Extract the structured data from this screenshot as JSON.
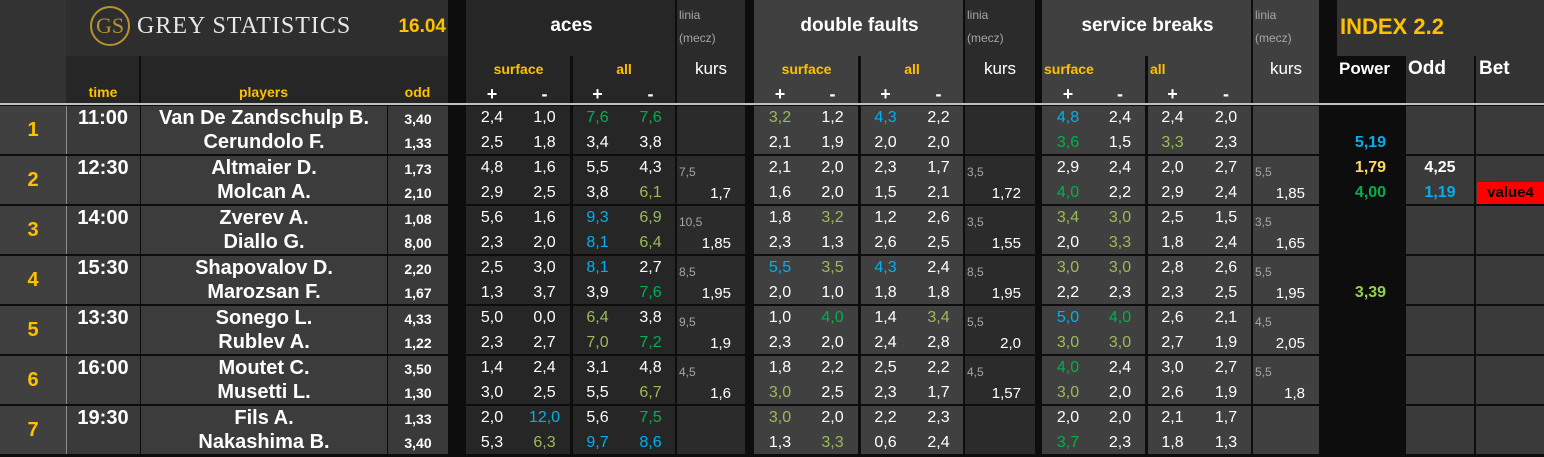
{
  "header": {
    "logo_mark": "GS",
    "brand": "GREY STATISTICS",
    "date": "16.04",
    "col_time": "time",
    "col_players": "players",
    "col_odd": "odd",
    "sections": [
      {
        "title": "aces",
        "linia": "linia",
        "mecz": "(mecz)",
        "surface": "surface",
        "all": "all",
        "plus": "+",
        "minus": "-",
        "kurs": "kurs"
      },
      {
        "title": "double faults",
        "linia": "linia",
        "mecz": "(mecz)",
        "surface": "surface",
        "all": "all",
        "plus": "+",
        "minus": "-",
        "kurs": "kurs"
      },
      {
        "title": "service breaks",
        "linia": "linia",
        "mecz": "(mecz)",
        "surface": "surface",
        "all": "all",
        "plus": "+",
        "minus": "-",
        "kurs": "kurs"
      }
    ],
    "index_title": "INDEX 2.2",
    "col_power": "Power",
    "col_index_odd": "Odd",
    "col_bet": "Bet"
  },
  "colors": {
    "w": "#ffffff",
    "g": "#00b050",
    "l": "#9bbb59",
    "b": "#00b0f0",
    "y": "#ffd966",
    "yg": "#92d050",
    "accent": "#ffc000",
    "bet_bg": "#ff0000"
  },
  "matches": [
    {
      "num": "1",
      "time": "11:00",
      "players": [
        "Van De Zandschulp B.",
        "Cerundolo F."
      ],
      "odds": [
        "3,40",
        "1,33"
      ],
      "aces": {
        "rows": [
          [
            [
              "2,4",
              "w"
            ],
            [
              "1,0",
              "w"
            ],
            [
              "7,6",
              "g"
            ],
            [
              "7,6",
              "g"
            ]
          ],
          [
            [
              "2,5",
              "w"
            ],
            [
              "1,8",
              "w"
            ],
            [
              "3,4",
              "w"
            ],
            [
              "3,8",
              "w"
            ]
          ]
        ],
        "linia": "",
        "kurs": ""
      },
      "df": {
        "rows": [
          [
            [
              "3,2",
              "l"
            ],
            [
              "1,2",
              "w"
            ],
            [
              "4,3",
              "b"
            ],
            [
              "2,2",
              "w"
            ]
          ],
          [
            [
              "2,1",
              "w"
            ],
            [
              "1,9",
              "w"
            ],
            [
              "2,0",
              "w"
            ],
            [
              "2,0",
              "w"
            ]
          ]
        ],
        "linia": "",
        "kurs": ""
      },
      "sb": {
        "rows": [
          [
            [
              "4,8",
              "b"
            ],
            [
              "2,4",
              "w"
            ],
            [
              "2,4",
              "w"
            ],
            [
              "2,0",
              "w"
            ]
          ],
          [
            [
              "3,6",
              "g"
            ],
            [
              "1,5",
              "w"
            ],
            [
              "3,3",
              "l"
            ],
            [
              "2,3",
              "w"
            ]
          ]
        ],
        "linia": "",
        "kurs": ""
      },
      "power": [
        [
          "",
          ""
        ],
        [
          "5,19",
          "b"
        ]
      ],
      "odd": [
        [
          "",
          ""
        ],
        [
          "",
          ""
        ]
      ],
      "bet": [
        "",
        ""
      ]
    },
    {
      "num": "2",
      "time": "12:30",
      "players": [
        "Altmaier D.",
        "Molcan A."
      ],
      "odds": [
        "1,73",
        "2,10"
      ],
      "aces": {
        "rows": [
          [
            [
              "4,8",
              "w"
            ],
            [
              "1,6",
              "w"
            ],
            [
              "5,5",
              "w"
            ],
            [
              "4,3",
              "w"
            ]
          ],
          [
            [
              "2,9",
              "w"
            ],
            [
              "2,5",
              "w"
            ],
            [
              "3,8",
              "w"
            ],
            [
              "6,1",
              "l"
            ]
          ]
        ],
        "linia": "7,5",
        "kurs": "1,7"
      },
      "df": {
        "rows": [
          [
            [
              "2,1",
              "w"
            ],
            [
              "2,0",
              "w"
            ],
            [
              "2,3",
              "w"
            ],
            [
              "1,7",
              "w"
            ]
          ],
          [
            [
              "1,6",
              "w"
            ],
            [
              "2,0",
              "w"
            ],
            [
              "1,5",
              "w"
            ],
            [
              "2,1",
              "w"
            ]
          ]
        ],
        "linia": "3,5",
        "kurs": "1,72"
      },
      "sb": {
        "rows": [
          [
            [
              "2,9",
              "w"
            ],
            [
              "2,4",
              "w"
            ],
            [
              "2,0",
              "w"
            ],
            [
              "2,7",
              "w"
            ]
          ],
          [
            [
              "4,0",
              "g"
            ],
            [
              "2,2",
              "w"
            ],
            [
              "2,9",
              "w"
            ],
            [
              "2,4",
              "w"
            ]
          ]
        ],
        "linia": "5,5",
        "kurs": "1,85"
      },
      "power": [
        [
          "1,79",
          "y"
        ],
        [
          "4,00",
          "g"
        ]
      ],
      "odd": [
        [
          "4,25",
          "w"
        ],
        [
          "1,19",
          "b"
        ]
      ],
      "bet": [
        "",
        "value4"
      ]
    },
    {
      "num": "3",
      "time": "14:00",
      "players": [
        "Zverev A.",
        "Diallo G."
      ],
      "odds": [
        "1,08",
        "8,00"
      ],
      "aces": {
        "rows": [
          [
            [
              "5,6",
              "w"
            ],
            [
              "1,6",
              "w"
            ],
            [
              "9,3",
              "b"
            ],
            [
              "6,9",
              "l"
            ]
          ],
          [
            [
              "2,3",
              "w"
            ],
            [
              "2,0",
              "w"
            ],
            [
              "8,1",
              "b"
            ],
            [
              "6,4",
              "l"
            ]
          ]
        ],
        "linia": "10,5",
        "kurs": "1,85"
      },
      "df": {
        "rows": [
          [
            [
              "1,8",
              "w"
            ],
            [
              "3,2",
              "l"
            ],
            [
              "1,2",
              "w"
            ],
            [
              "2,6",
              "w"
            ]
          ],
          [
            [
              "2,3",
              "w"
            ],
            [
              "1,3",
              "w"
            ],
            [
              "2,6",
              "w"
            ],
            [
              "2,5",
              "w"
            ]
          ]
        ],
        "linia": "3,5",
        "kurs": "1,55"
      },
      "sb": {
        "rows": [
          [
            [
              "3,4",
              "l"
            ],
            [
              "3,0",
              "l"
            ],
            [
              "2,5",
              "w"
            ],
            [
              "1,5",
              "w"
            ]
          ],
          [
            [
              "2,0",
              "w"
            ],
            [
              "3,3",
              "l"
            ],
            [
              "1,8",
              "w"
            ],
            [
              "2,4",
              "w"
            ]
          ]
        ],
        "linia": "3,5",
        "kurs": "1,65"
      },
      "power": [
        [
          "",
          ""
        ],
        [
          "",
          ""
        ]
      ],
      "odd": [
        [
          "",
          ""
        ],
        [
          "",
          ""
        ]
      ],
      "bet": [
        "",
        ""
      ]
    },
    {
      "num": "4",
      "time": "15:30",
      "players": [
        "Shapovalov D.",
        "Marozsan F."
      ],
      "odds": [
        "2,20",
        "1,67"
      ],
      "aces": {
        "rows": [
          [
            [
              "2,5",
              "w"
            ],
            [
              "3,0",
              "w"
            ],
            [
              "8,1",
              "b"
            ],
            [
              "2,7",
              "w"
            ]
          ],
          [
            [
              "1,3",
              "w"
            ],
            [
              "3,7",
              "w"
            ],
            [
              "3,9",
              "w"
            ],
            [
              "7,6",
              "g"
            ]
          ]
        ],
        "linia": "8,5",
        "kurs": "1,95"
      },
      "df": {
        "rows": [
          [
            [
              "5,5",
              "b"
            ],
            [
              "3,5",
              "l"
            ],
            [
              "4,3",
              "b"
            ],
            [
              "2,4",
              "w"
            ]
          ],
          [
            [
              "2,0",
              "w"
            ],
            [
              "1,0",
              "w"
            ],
            [
              "1,8",
              "w"
            ],
            [
              "1,8",
              "w"
            ]
          ]
        ],
        "linia": "8,5",
        "kurs": "1,95"
      },
      "sb": {
        "rows": [
          [
            [
              "3,0",
              "l"
            ],
            [
              "3,0",
              "l"
            ],
            [
              "2,8",
              "w"
            ],
            [
              "2,6",
              "w"
            ]
          ],
          [
            [
              "2,2",
              "w"
            ],
            [
              "2,3",
              "w"
            ],
            [
              "2,3",
              "w"
            ],
            [
              "2,5",
              "w"
            ]
          ]
        ],
        "linia": "5,5",
        "kurs": "1,95"
      },
      "power": [
        [
          "",
          ""
        ],
        [
          "3,39",
          "yg"
        ]
      ],
      "odd": [
        [
          "",
          ""
        ],
        [
          "",
          ""
        ]
      ],
      "bet": [
        "",
        ""
      ]
    },
    {
      "num": "5",
      "time": "13:30",
      "players": [
        "Sonego L.",
        "Rublev A."
      ],
      "odds": [
        "4,33",
        "1,22"
      ],
      "aces": {
        "rows": [
          [
            [
              "5,0",
              "w"
            ],
            [
              "0,0",
              "w"
            ],
            [
              "6,4",
              "l"
            ],
            [
              "3,8",
              "w"
            ]
          ],
          [
            [
              "2,3",
              "w"
            ],
            [
              "2,7",
              "w"
            ],
            [
              "7,0",
              "l"
            ],
            [
              "7,2",
              "g"
            ]
          ]
        ],
        "linia": "9,5",
        "kurs": "1,9"
      },
      "df": {
        "rows": [
          [
            [
              "1,0",
              "w"
            ],
            [
              "4,0",
              "g"
            ],
            [
              "1,4",
              "w"
            ],
            [
              "3,4",
              "l"
            ]
          ],
          [
            [
              "2,3",
              "w"
            ],
            [
              "2,0",
              "w"
            ],
            [
              "2,4",
              "w"
            ],
            [
              "2,8",
              "w"
            ]
          ]
        ],
        "linia": "5,5",
        "kurs": "2,0"
      },
      "sb": {
        "rows": [
          [
            [
              "5,0",
              "b"
            ],
            [
              "4,0",
              "g"
            ],
            [
              "2,6",
              "w"
            ],
            [
              "2,1",
              "w"
            ]
          ],
          [
            [
              "3,0",
              "l"
            ],
            [
              "3,0",
              "l"
            ],
            [
              "2,7",
              "w"
            ],
            [
              "1,9",
              "w"
            ]
          ]
        ],
        "linia": "4,5",
        "kurs": "2,05"
      },
      "power": [
        [
          "",
          ""
        ],
        [
          "",
          ""
        ]
      ],
      "odd": [
        [
          "",
          ""
        ],
        [
          "",
          ""
        ]
      ],
      "bet": [
        "",
        ""
      ]
    },
    {
      "num": "6",
      "time": "16:00",
      "players": [
        "Moutet C.",
        "Musetti L."
      ],
      "odds": [
        "3,50",
        "1,30"
      ],
      "aces": {
        "rows": [
          [
            [
              "1,4",
              "w"
            ],
            [
              "2,4",
              "w"
            ],
            [
              "3,1",
              "w"
            ],
            [
              "4,8",
              "w"
            ]
          ],
          [
            [
              "3,0",
              "w"
            ],
            [
              "2,5",
              "w"
            ],
            [
              "5,5",
              "w"
            ],
            [
              "6,7",
              "l"
            ]
          ]
        ],
        "linia": "4,5",
        "kurs": "1,6"
      },
      "df": {
        "rows": [
          [
            [
              "1,8",
              "w"
            ],
            [
              "2,2",
              "w"
            ],
            [
              "2,5",
              "w"
            ],
            [
              "2,2",
              "w"
            ]
          ],
          [
            [
              "3,0",
              "l"
            ],
            [
              "2,5",
              "w"
            ],
            [
              "2,3",
              "w"
            ],
            [
              "1,7",
              "w"
            ]
          ]
        ],
        "linia": "4,5",
        "kurs": "1,57"
      },
      "sb": {
        "rows": [
          [
            [
              "4,0",
              "g"
            ],
            [
              "2,4",
              "w"
            ],
            [
              "3,0",
              "w"
            ],
            [
              "2,7",
              "w"
            ]
          ],
          [
            [
              "3,0",
              "l"
            ],
            [
              "2,0",
              "w"
            ],
            [
              "2,6",
              "w"
            ],
            [
              "1,9",
              "w"
            ]
          ]
        ],
        "linia": "5,5",
        "kurs": "1,8"
      },
      "power": [
        [
          "",
          ""
        ],
        [
          "",
          ""
        ]
      ],
      "odd": [
        [
          "",
          ""
        ],
        [
          "",
          ""
        ]
      ],
      "bet": [
        "",
        ""
      ]
    },
    {
      "num": "7",
      "time": "19:30",
      "players": [
        "Fils A.",
        "Nakashima B."
      ],
      "odds": [
        "1,33",
        "3,40"
      ],
      "aces": {
        "rows": [
          [
            [
              "2,0",
              "w"
            ],
            [
              "12,0",
              "b"
            ],
            [
              "5,6",
              "w"
            ],
            [
              "7,5",
              "g"
            ]
          ],
          [
            [
              "5,3",
              "w"
            ],
            [
              "6,3",
              "l"
            ],
            [
              "9,7",
              "b"
            ],
            [
              "8,6",
              "b"
            ]
          ]
        ],
        "linia": "",
        "kurs": ""
      },
      "df": {
        "rows": [
          [
            [
              "3,0",
              "l"
            ],
            [
              "2,0",
              "w"
            ],
            [
              "2,2",
              "w"
            ],
            [
              "2,3",
              "w"
            ]
          ],
          [
            [
              "1,3",
              "w"
            ],
            [
              "3,3",
              "l"
            ],
            [
              "0,6",
              "w"
            ],
            [
              "2,4",
              "w"
            ]
          ]
        ],
        "linia": "",
        "kurs": ""
      },
      "sb": {
        "rows": [
          [
            [
              "2,0",
              "w"
            ],
            [
              "2,0",
              "w"
            ],
            [
              "2,1",
              "w"
            ],
            [
              "1,7",
              "w"
            ]
          ],
          [
            [
              "3,7",
              "g"
            ],
            [
              "2,3",
              "w"
            ],
            [
              "1,8",
              "w"
            ],
            [
              "1,3",
              "w"
            ]
          ]
        ],
        "linia": "",
        "kurs": ""
      },
      "power": [
        [
          "",
          ""
        ],
        [
          "",
          ""
        ]
      ],
      "odd": [
        [
          "",
          ""
        ],
        [
          "",
          ""
        ]
      ],
      "bet": [
        "",
        ""
      ]
    }
  ]
}
